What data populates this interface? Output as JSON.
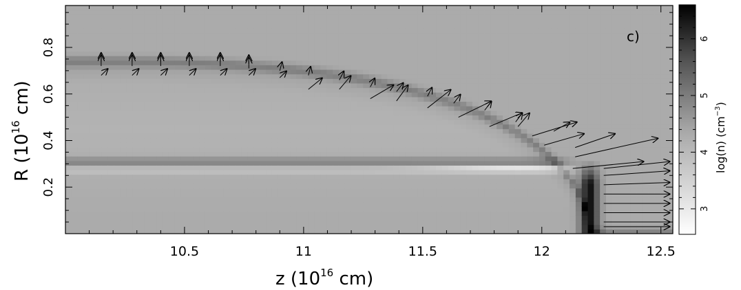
{
  "chart_data": {
    "type": "heatmap",
    "panel_label": "c)",
    "xlabel": {
      "base": "z  (10",
      "exp": "16",
      "tail": "  cm)"
    },
    "ylabel": {
      "base": "R  (10",
      "exp": "16",
      "tail": "  cm)"
    },
    "colorbar_label": {
      "pre": "log(n)  (cm",
      "exp": "−3",
      "post": ")"
    },
    "xlim": [
      10.0,
      12.55
    ],
    "ylim": [
      0.0,
      0.98
    ],
    "x_ticks": [
      10.5,
      11,
      11.5,
      12,
      12.5
    ],
    "x_tick_labels": [
      "10.5",
      "11",
      "11.5",
      "12",
      "12.5"
    ],
    "y_ticks": [
      0.2,
      0.4,
      0.6,
      0.8
    ],
    "y_tick_labels": [
      "0.2",
      "0.4",
      "0.6",
      "0.8"
    ],
    "colorbar_range": [
      2.55,
      6.6
    ],
    "colorbar_ticks": [
      3,
      4,
      5,
      6
    ],
    "colorbar_tick_labels": [
      "3",
      "4",
      "5",
      "6"
    ],
    "colormap": "gray_reversed",
    "colors": {
      "background": "#ffffff",
      "frame": "#000000"
    },
    "density_structure": {
      "ambient_log_n": 4.3,
      "shell_outer_log_n": 5.0,
      "shell_inner_log_n": 4.5,
      "jet_dense_band_log_n": 5.0,
      "jet_axis_log_n": 4.0,
      "cavity_log_n": 4.1,
      "low_density_layer_log_n": 3.0,
      "bow_shock_cap_log_n": 6.4,
      "bow_shock_z": 12.2
    },
    "velocity_arrows": [
      {
        "z": 10.15,
        "R": 0.72,
        "dz": 0.0,
        "dR": 0.05
      },
      {
        "z": 10.15,
        "R": 0.74,
        "dz": 0.0,
        "dR": 0.04
      },
      {
        "z": 10.15,
        "R": 0.68,
        "dz": 0.03,
        "dR": 0.03
      },
      {
        "z": 10.28,
        "R": 0.72,
        "dz": 0.0,
        "dR": 0.05
      },
      {
        "z": 10.28,
        "R": 0.74,
        "dz": 0.0,
        "dR": 0.04
      },
      {
        "z": 10.28,
        "R": 0.68,
        "dz": 0.03,
        "dR": 0.03
      },
      {
        "z": 10.4,
        "R": 0.72,
        "dz": 0.0,
        "dR": 0.05
      },
      {
        "z": 10.4,
        "R": 0.74,
        "dz": 0.0,
        "dR": 0.04
      },
      {
        "z": 10.4,
        "R": 0.68,
        "dz": 0.03,
        "dR": 0.03
      },
      {
        "z": 10.52,
        "R": 0.72,
        "dz": 0.0,
        "dR": 0.05
      },
      {
        "z": 10.52,
        "R": 0.74,
        "dz": 0.0,
        "dR": 0.04
      },
      {
        "z": 10.52,
        "R": 0.68,
        "dz": 0.03,
        "dR": 0.03
      },
      {
        "z": 10.65,
        "R": 0.72,
        "dz": 0.0,
        "dR": 0.05
      },
      {
        "z": 10.65,
        "R": 0.74,
        "dz": 0.0,
        "dR": 0.04
      },
      {
        "z": 10.65,
        "R": 0.68,
        "dz": 0.03,
        "dR": 0.03
      },
      {
        "z": 10.77,
        "R": 0.71,
        "dz": 0.0,
        "dR": 0.05
      },
      {
        "z": 10.77,
        "R": 0.73,
        "dz": 0.0,
        "dR": 0.04
      },
      {
        "z": 10.77,
        "R": 0.68,
        "dz": 0.03,
        "dR": 0.03
      },
      {
        "z": 10.9,
        "R": 0.7,
        "dz": 0.01,
        "dR": 0.04
      },
      {
        "z": 10.9,
        "R": 0.67,
        "dz": 0.03,
        "dR": 0.03
      },
      {
        "z": 11.02,
        "R": 0.68,
        "dz": 0.01,
        "dR": 0.04
      },
      {
        "z": 11.02,
        "R": 0.62,
        "dz": 0.06,
        "dR": 0.05
      },
      {
        "z": 11.15,
        "R": 0.66,
        "dz": 0.02,
        "dR": 0.04
      },
      {
        "z": 11.15,
        "R": 0.62,
        "dz": 0.05,
        "dR": 0.06
      },
      {
        "z": 11.28,
        "R": 0.63,
        "dz": 0.02,
        "dR": 0.04
      },
      {
        "z": 11.28,
        "R": 0.58,
        "dz": 0.1,
        "dR": 0.06
      },
      {
        "z": 11.39,
        "R": 0.61,
        "dz": 0.03,
        "dR": 0.04
      },
      {
        "z": 11.39,
        "R": 0.57,
        "dz": 0.05,
        "dR": 0.07
      },
      {
        "z": 11.52,
        "R": 0.59,
        "dz": 0.02,
        "dR": 0.04
      },
      {
        "z": 11.52,
        "R": 0.54,
        "dz": 0.1,
        "dR": 0.08
      },
      {
        "z": 11.63,
        "R": 0.56,
        "dz": 0.03,
        "dR": 0.04
      },
      {
        "z": 11.65,
        "R": 0.5,
        "dz": 0.14,
        "dR": 0.07
      },
      {
        "z": 11.76,
        "R": 0.53,
        "dz": 0.03,
        "dR": 0.04
      },
      {
        "z": 11.78,
        "R": 0.46,
        "dz": 0.14,
        "dR": 0.06
      },
      {
        "z": 11.89,
        "R": 0.48,
        "dz": 0.03,
        "dR": 0.04
      },
      {
        "z": 11.9,
        "R": 0.46,
        "dz": 0.05,
        "dR": 0.06
      },
      {
        "z": 11.96,
        "R": 0.42,
        "dz": 0.19,
        "dR": 0.06
      },
      {
        "z": 12.05,
        "R": 0.44,
        "dz": 0.07,
        "dR": 0.04
      },
      {
        "z": 12.01,
        "R": 0.38,
        "dz": 0.17,
        "dR": 0.05
      },
      {
        "z": 12.14,
        "R": 0.37,
        "dz": 0.17,
        "dR": 0.06
      },
      {
        "z": 12.14,
        "R": 0.33,
        "dz": 0.35,
        "dR": 0.08
      },
      {
        "z": 12.13,
        "R": 0.28,
        "dz": 0.3,
        "dR": 0.03
      },
      {
        "z": 12.26,
        "R": 0.28,
        "dz": 0.28,
        "dR": 0.03
      },
      {
        "z": 12.26,
        "R": 0.25,
        "dz": 0.28,
        "dR": 0.02
      },
      {
        "z": 12.26,
        "R": 0.21,
        "dz": 0.28,
        "dR": 0.01
      },
      {
        "z": 12.26,
        "R": 0.17,
        "dz": 0.28,
        "dR": 0.0
      },
      {
        "z": 12.26,
        "R": 0.13,
        "dz": 0.28,
        "dR": 0.0
      },
      {
        "z": 12.26,
        "R": 0.09,
        "dz": 0.28,
        "dR": 0.0
      },
      {
        "z": 12.26,
        "R": 0.05,
        "dz": 0.28,
        "dR": 0.0
      },
      {
        "z": 12.26,
        "R": 0.03,
        "dz": 0.28,
        "dR": 0.0
      }
    ]
  }
}
